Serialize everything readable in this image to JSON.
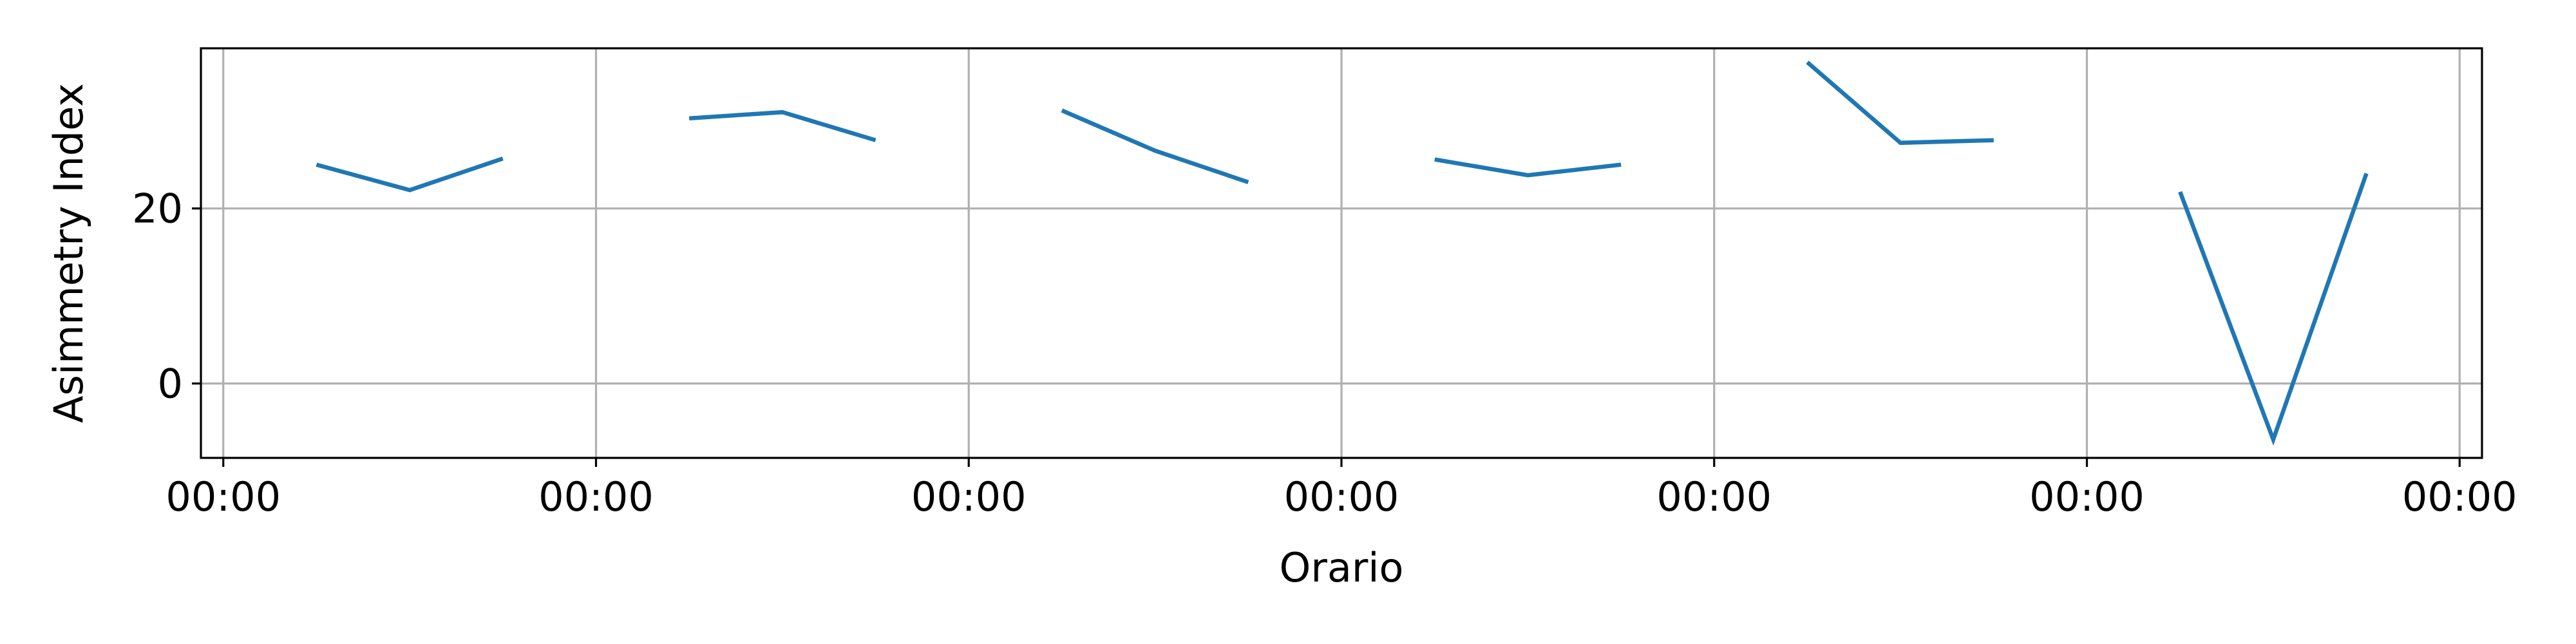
{
  "chart_data": {
    "type": "line",
    "title": "",
    "xlabel": "Orario",
    "ylabel": "Asimmetry Index",
    "x_tick_labels": [
      "00:00",
      "00:00",
      "00:00",
      "00:00",
      "00:00",
      "00:00",
      "00:00"
    ],
    "y_ticks": [
      0,
      20
    ],
    "ylim": [
      -8.5,
      38.3
    ],
    "grid": true,
    "legend": "none",
    "line_color": "#1f77b4",
    "series": [
      {
        "segments": [
          [
            [
              0.25,
              25.0
            ],
            [
              0.5,
              22.1
            ],
            [
              0.75,
              25.7
            ]
          ],
          [
            [
              1.25,
              30.3
            ],
            [
              1.5,
              31.0
            ],
            [
              1.75,
              27.8
            ]
          ],
          [
            [
              2.25,
              31.2
            ],
            [
              2.5,
              26.6
            ],
            [
              2.75,
              23.0
            ]
          ],
          [
            [
              3.25,
              25.6
            ],
            [
              3.5,
              23.8
            ],
            [
              3.75,
              25.0
            ]
          ],
          [
            [
              4.25,
              36.7
            ],
            [
              4.5,
              27.5
            ],
            [
              4.75,
              27.8
            ]
          ],
          [
            [
              5.25,
              21.9
            ],
            [
              5.5,
              -6.4
            ],
            [
              5.75,
              24.0
            ]
          ]
        ]
      }
    ]
  }
}
